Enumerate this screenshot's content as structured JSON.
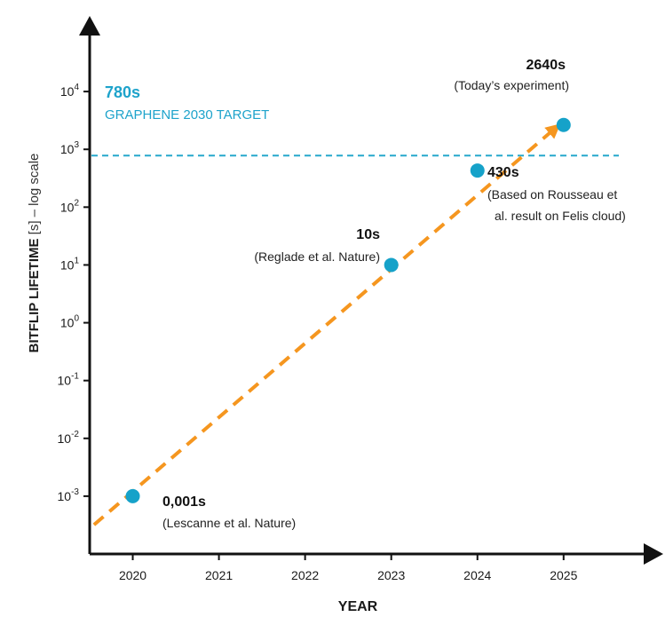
{
  "chart_data": {
    "type": "scatter",
    "xlabel": "YEAR",
    "ylabel": {
      "main": "BITFLIP LIFETIME",
      "unit": " [s] – log scale"
    },
    "x_ticks": [
      "2020",
      "2021",
      "2022",
      "2023",
      "2024",
      "2025"
    ],
    "y_ticks": [
      {
        "base": "10",
        "exp": "4",
        "value": 10000
      },
      {
        "base": "10",
        "exp": "3",
        "value": 1000
      },
      {
        "base": "10",
        "exp": "2",
        "value": 100
      },
      {
        "base": "10",
        "exp": "1",
        "value": 10
      },
      {
        "base": "10",
        "exp": "0",
        "value": 1
      },
      {
        "base": "10",
        "exp": "-1",
        "value": 0.1
      },
      {
        "base": "10",
        "exp": "-2",
        "value": 0.01
      },
      {
        "base": "10",
        "exp": "-3",
        "value": 0.001
      }
    ],
    "xlim": [
      2019.5,
      2025.95
    ],
    "ylim": [
      0.0001,
      100000
    ],
    "yscale": "log",
    "points": [
      {
        "x": 2020,
        "y": 0.001,
        "value_label": "0,001s",
        "note": "(Lescanne et al. Nature)"
      },
      {
        "x": 2023,
        "y": 10,
        "value_label": "10s",
        "note": "(Reglade et al. Nature)"
      },
      {
        "x": 2024,
        "y": 430,
        "value_label": "430s",
        "note": "(Based on Rousseau et",
        "note2": "al. result on Felis cloud)"
      },
      {
        "x": 2025,
        "y": 2640,
        "value_label": "2640s",
        "note": "(Today’s experiment)"
      }
    ],
    "target": {
      "y": 780,
      "value_label": "780s",
      "label": "GRAPHENE 2030 TARGET"
    },
    "trend": {
      "x0": 2019.55,
      "y0": 0.00032,
      "x1": 2024.9,
      "y1": 2300
    },
    "colors": {
      "point": "#16a2c9",
      "trend": "#f5961f",
      "target": "#26a8cc",
      "axis": "#111111"
    }
  }
}
